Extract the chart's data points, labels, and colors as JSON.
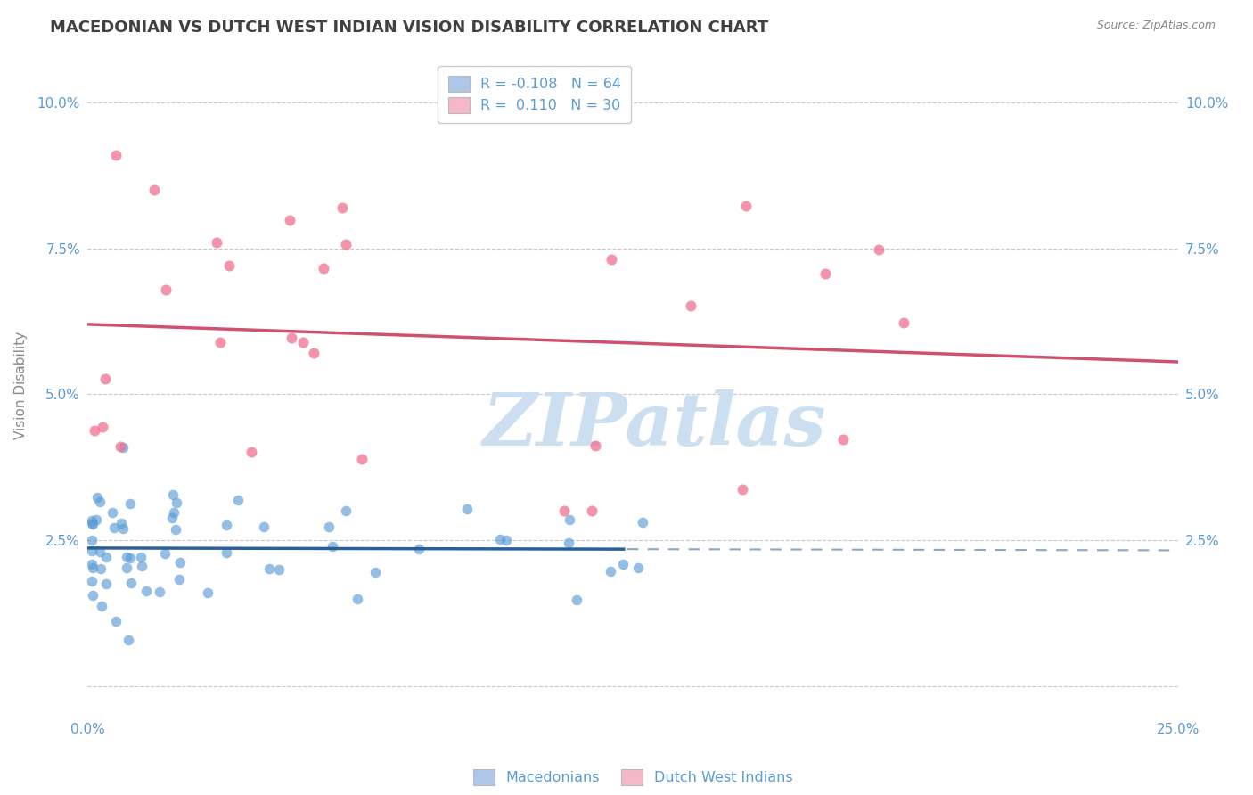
{
  "title": "MACEDONIAN VS DUTCH WEST INDIAN VISION DISABILITY CORRELATION CHART",
  "source": "Source: ZipAtlas.com",
  "ylabel": "Vision Disability",
  "xlim": [
    0.0,
    0.25
  ],
  "ylim": [
    -0.005,
    0.108
  ],
  "yticks": [
    0.0,
    0.025,
    0.05,
    0.075,
    0.1
  ],
  "ytick_labels_left": [
    "",
    "2.5%",
    "5.0%",
    "7.5%",
    "10.0%"
  ],
  "ytick_labels_right": [
    "",
    "2.5%",
    "5.0%",
    "7.5%",
    "10.0%"
  ],
  "xticks": [
    0.0,
    0.05,
    0.1,
    0.15,
    0.2,
    0.25
  ],
  "xtick_labels": [
    "0.0%",
    "",
    "",
    "",
    "",
    "25.0%"
  ],
  "legend_line1": "R = -0.108   N = 64",
  "legend_line2": "R =  0.110   N = 30",
  "legend_color1": "#aec6e8",
  "legend_color2": "#f4b8c8",
  "macedonian_color": "#5b9bd5",
  "dutch_color": "#f07090",
  "macedonian_line_color": "#2a6099",
  "dutch_line_color": "#d05070",
  "background_color": "#ffffff",
  "grid_color": "#c8c8c8",
  "watermark": "ZIPatlas",
  "watermark_color": "#ccdff0",
  "title_color": "#404040",
  "axis_label_color": "#5b9bd5",
  "ylabel_color": "#888888",
  "source_color": "#888888",
  "bottom_legend_mac": "Macedonians",
  "bottom_legend_dwi": "Dutch West Indians",
  "mac_seed": 99,
  "dwi_seed": 55
}
